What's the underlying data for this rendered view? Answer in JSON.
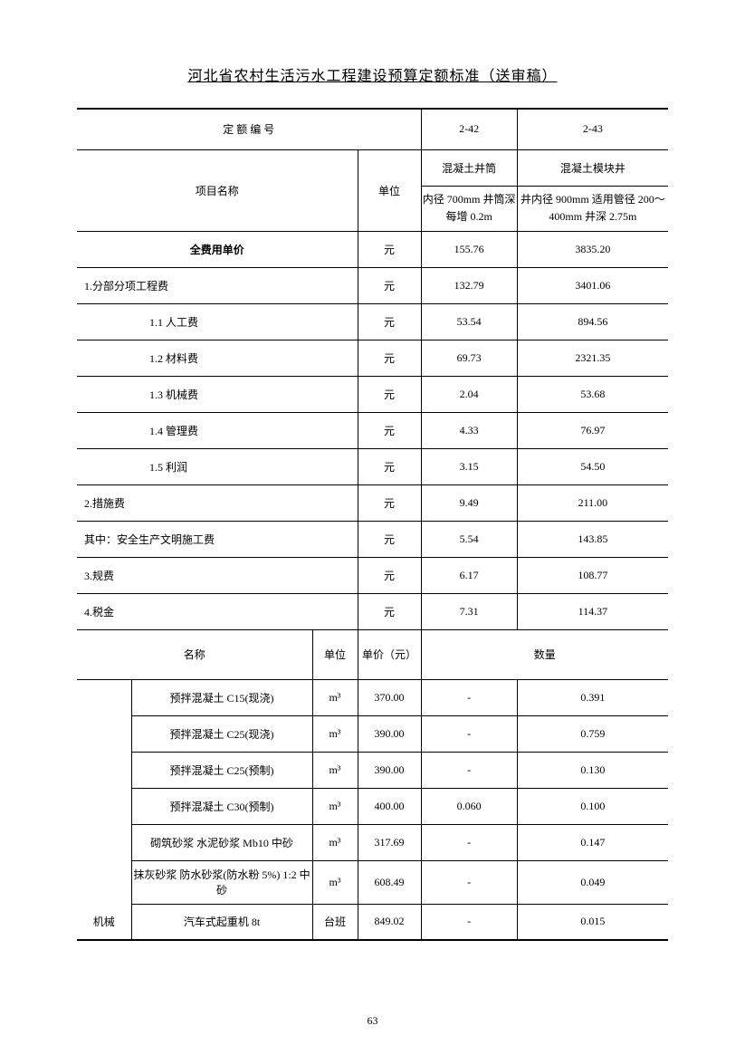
{
  "doc": {
    "title": "河北省农村生活污水工程建设预算定额标准（送审稿）",
    "page_number": "63"
  },
  "table": {
    "header": {
      "code_label": "定 额 编 号",
      "code_1": "2-42",
      "code_2": "2-43",
      "item_label": "项目名称",
      "unit_label": "单位",
      "group_1": "混凝土井筒",
      "group_2": "混凝土模块井",
      "sub_1": "内径 700mm 井筒深每增 0.2m",
      "sub_2": "井内径 900mm 适用管径 200～400mm 井深 2.75m"
    },
    "cost_rows": [
      {
        "label": "全费用单价",
        "unit": "元",
        "v1": "155.76",
        "v2": "3835.20",
        "class": "bold"
      },
      {
        "label": "1.分部分项工程费",
        "unit": "元",
        "v1": "132.79",
        "v2": "3401.06",
        "class": "left-align"
      },
      {
        "label": "1.1 人工费",
        "unit": "元",
        "v1": "53.54",
        "v2": "894.56",
        "class": "indent-2"
      },
      {
        "label": "1.2 材料费",
        "unit": "元",
        "v1": "69.73",
        "v2": "2321.35",
        "class": "indent-2"
      },
      {
        "label": "1.3 机械费",
        "unit": "元",
        "v1": "2.04",
        "v2": "53.68",
        "class": "indent-2"
      },
      {
        "label": "1.4 管理费",
        "unit": "元",
        "v1": "4.33",
        "v2": "76.97",
        "class": "indent-2"
      },
      {
        "label": "1.5 利润",
        "unit": "元",
        "v1": "3.15",
        "v2": "54.50",
        "class": "indent-2"
      },
      {
        "label": "2.措施费",
        "unit": "元",
        "v1": "9.49",
        "v2": "211.00",
        "class": "left-align"
      },
      {
        "label": "其中：安全生产文明施工费",
        "unit": "元",
        "v1": "5.54",
        "v2": "143.85",
        "class": "left-align"
      },
      {
        "label": "3.规费",
        "unit": "元",
        "v1": "6.17",
        "v2": "108.77",
        "class": "left-align"
      },
      {
        "label": "4.税金",
        "unit": "元",
        "v1": "7.31",
        "v2": "114.37",
        "class": "left-align"
      }
    ],
    "material_header": {
      "name": "名称",
      "unit": "单位",
      "price": "单价（元）",
      "qty": "数量"
    },
    "material_rows": [
      {
        "cat": "",
        "name": "预拌混凝土 C15(现浇)",
        "unit": "m³",
        "price": "370.00",
        "q1": "-",
        "q2": "0.391"
      },
      {
        "cat": "",
        "name": "预拌混凝土 C25(现浇)",
        "unit": "m³",
        "price": "390.00",
        "q1": "-",
        "q2": "0.759"
      },
      {
        "cat": "",
        "name": "预拌混凝土 C25(预制)",
        "unit": "m³",
        "price": "390.00",
        "q1": "-",
        "q2": "0.130"
      },
      {
        "cat": "",
        "name": "预拌混凝土 C30(预制)",
        "unit": "m³",
        "price": "400.00",
        "q1": "0.060",
        "q2": "0.100"
      },
      {
        "cat": "",
        "name": "砌筑砂浆 水泥砂浆 Mb10 中砂",
        "unit": "m³",
        "price": "317.69",
        "q1": "-",
        "q2": "0.147"
      },
      {
        "cat": "",
        "name": "抹灰砂浆 防水砂浆(防水粉 5%) 1:2 中砂",
        "unit": "m³",
        "price": "608.49",
        "q1": "-",
        "q2": "0.049"
      }
    ],
    "machine_row": {
      "cat": "机械",
      "name": "汽车式起重机 8t",
      "unit": "台班",
      "price": "849.02",
      "q1": "-",
      "q2": "0.015"
    }
  }
}
